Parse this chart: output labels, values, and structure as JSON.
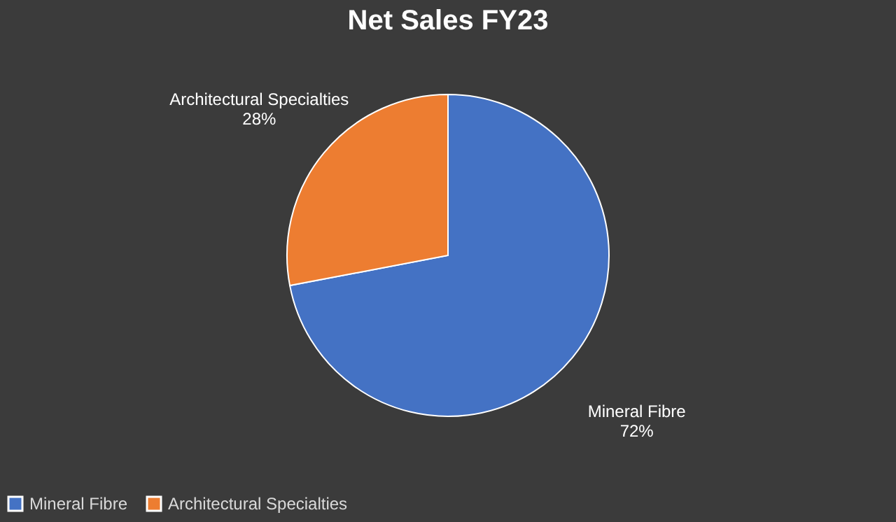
{
  "chart_data": {
    "type": "pie",
    "title": "Net Sales FY23",
    "categories": [
      "Mineral Fibre",
      "Architectural Specialties"
    ],
    "values": [
      72,
      28
    ],
    "colors": [
      "#4472c4",
      "#ed7d31"
    ],
    "value_labels": [
      "72%",
      "28%"
    ],
    "legend": "bottom"
  }
}
